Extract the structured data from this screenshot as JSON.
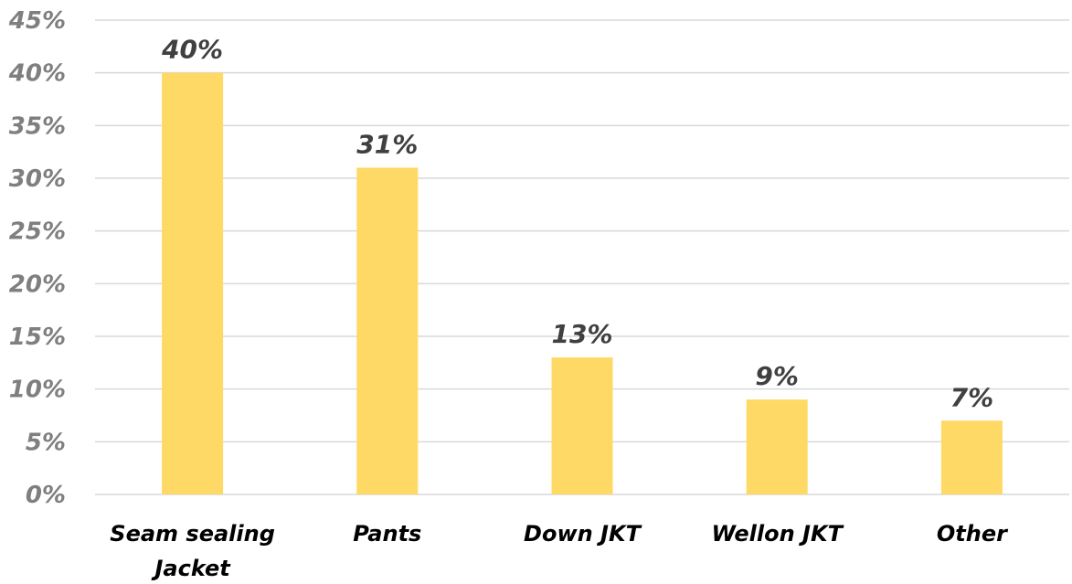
{
  "chart_data": {
    "type": "bar",
    "categories": [
      [
        "Seam sealing",
        "Jacket"
      ],
      [
        "Pants"
      ],
      [
        "Down JKT"
      ],
      [
        "Wellon JKT"
      ],
      [
        "Other"
      ]
    ],
    "values": [
      40,
      31,
      13,
      9,
      7
    ],
    "data_labels": [
      "40%",
      "31%",
      "13%",
      "9%",
      "7%"
    ],
    "y_ticks": [
      "0%",
      "5%",
      "10%",
      "15%",
      "20%",
      "25%",
      "30%",
      "35%",
      "40%",
      "45%"
    ],
    "ylim": [
      0,
      45
    ],
    "grid": true,
    "legend": "none",
    "bar_color": "#FFD966",
    "title": "",
    "xlabel": "",
    "ylabel": ""
  }
}
